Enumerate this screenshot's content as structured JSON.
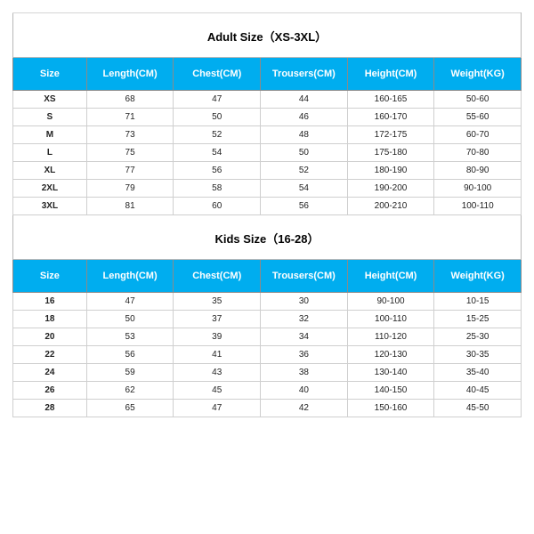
{
  "colors": {
    "header_bg": "#00adef",
    "header_text": "#ffffff",
    "cell_border": "#cfcfcf",
    "header_border": "#8a8a8a",
    "title_text": "#030303",
    "cell_text": "#232323"
  },
  "fonts": {
    "title_size_pt": 13,
    "header_size_pt": 11,
    "cell_size_pt": 10
  },
  "tables": [
    {
      "title": "Adult Size（XS-3XL）",
      "columns": [
        "Size",
        "Length(CM)",
        "Chest(CM)",
        "Trousers(CM)",
        "Height(CM)",
        "Weight(KG)"
      ],
      "rows": [
        [
          "XS",
          "68",
          "47",
          "44",
          "160-165",
          "50-60"
        ],
        [
          "S",
          "71",
          "50",
          "46",
          "160-170",
          "55-60"
        ],
        [
          "M",
          "73",
          "52",
          "48",
          "172-175",
          "60-70"
        ],
        [
          "L",
          "75",
          "54",
          "50",
          "175-180",
          "70-80"
        ],
        [
          "XL",
          "77",
          "56",
          "52",
          "180-190",
          "80-90"
        ],
        [
          "2XL",
          "79",
          "58",
          "54",
          "190-200",
          "90-100"
        ],
        [
          "3XL",
          "81",
          "60",
          "56",
          "200-210",
          "100-110"
        ]
      ]
    },
    {
      "title": "Kids Size（16-28）",
      "columns": [
        "Size",
        "Length(CM)",
        "Chest(CM)",
        "Trousers(CM)",
        "Height(CM)",
        "Weight(KG)"
      ],
      "rows": [
        [
          "16",
          "47",
          "35",
          "30",
          "90-100",
          "10-15"
        ],
        [
          "18",
          "50",
          "37",
          "32",
          "100-110",
          "15-25"
        ],
        [
          "20",
          "53",
          "39",
          "34",
          "110-120",
          "25-30"
        ],
        [
          "22",
          "56",
          "41",
          "36",
          "120-130",
          "30-35"
        ],
        [
          "24",
          "59",
          "43",
          "38",
          "130-140",
          "35-40"
        ],
        [
          "26",
          "62",
          "45",
          "40",
          "140-150",
          "40-45"
        ],
        [
          "28",
          "65",
          "47",
          "42",
          "150-160",
          "45-50"
        ]
      ]
    }
  ]
}
